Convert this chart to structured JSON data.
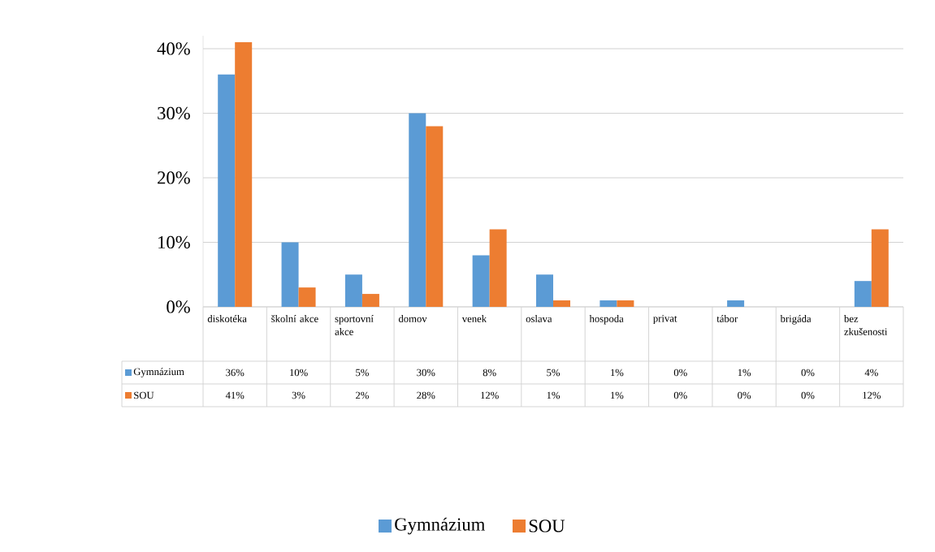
{
  "chart_data": {
    "type": "bar",
    "categories": [
      "diskotéka",
      "školní akce",
      "sportovní akce",
      "domov",
      "venek",
      "oslava",
      "hospoda",
      "privat",
      "tábor",
      "brigáda",
      "bez zkušenosti"
    ],
    "series": [
      {
        "name": "Gymnázium",
        "color": "#5b9bd5",
        "values": [
          36,
          10,
          5,
          30,
          8,
          5,
          1,
          0,
          1,
          0,
          4
        ],
        "value_labels": [
          "36%",
          "10%",
          "5%",
          "30%",
          "8%",
          "5%",
          "1%",
          "0%",
          "1%",
          "0%",
          "4%"
        ]
      },
      {
        "name": "SOU",
        "color": "#ed7d31",
        "values": [
          41,
          3,
          2,
          28,
          12,
          1,
          1,
          0,
          0,
          0,
          12
        ],
        "value_labels": [
          "41%",
          "3%",
          "2%",
          "28%",
          "12%",
          "1%",
          "1%",
          "0%",
          "0%",
          "0%",
          "12%"
        ]
      }
    ],
    "ylim": [
      0,
      42
    ],
    "yticks": [
      {
        "value": 0,
        "label": "0%"
      },
      {
        "value": 10,
        "label": "10%"
      },
      {
        "value": 20,
        "label": "20%"
      },
      {
        "value": 30,
        "label": "30%"
      },
      {
        "value": 40,
        "label": "40%"
      }
    ],
    "grid": "y",
    "legend": "bottom"
  }
}
